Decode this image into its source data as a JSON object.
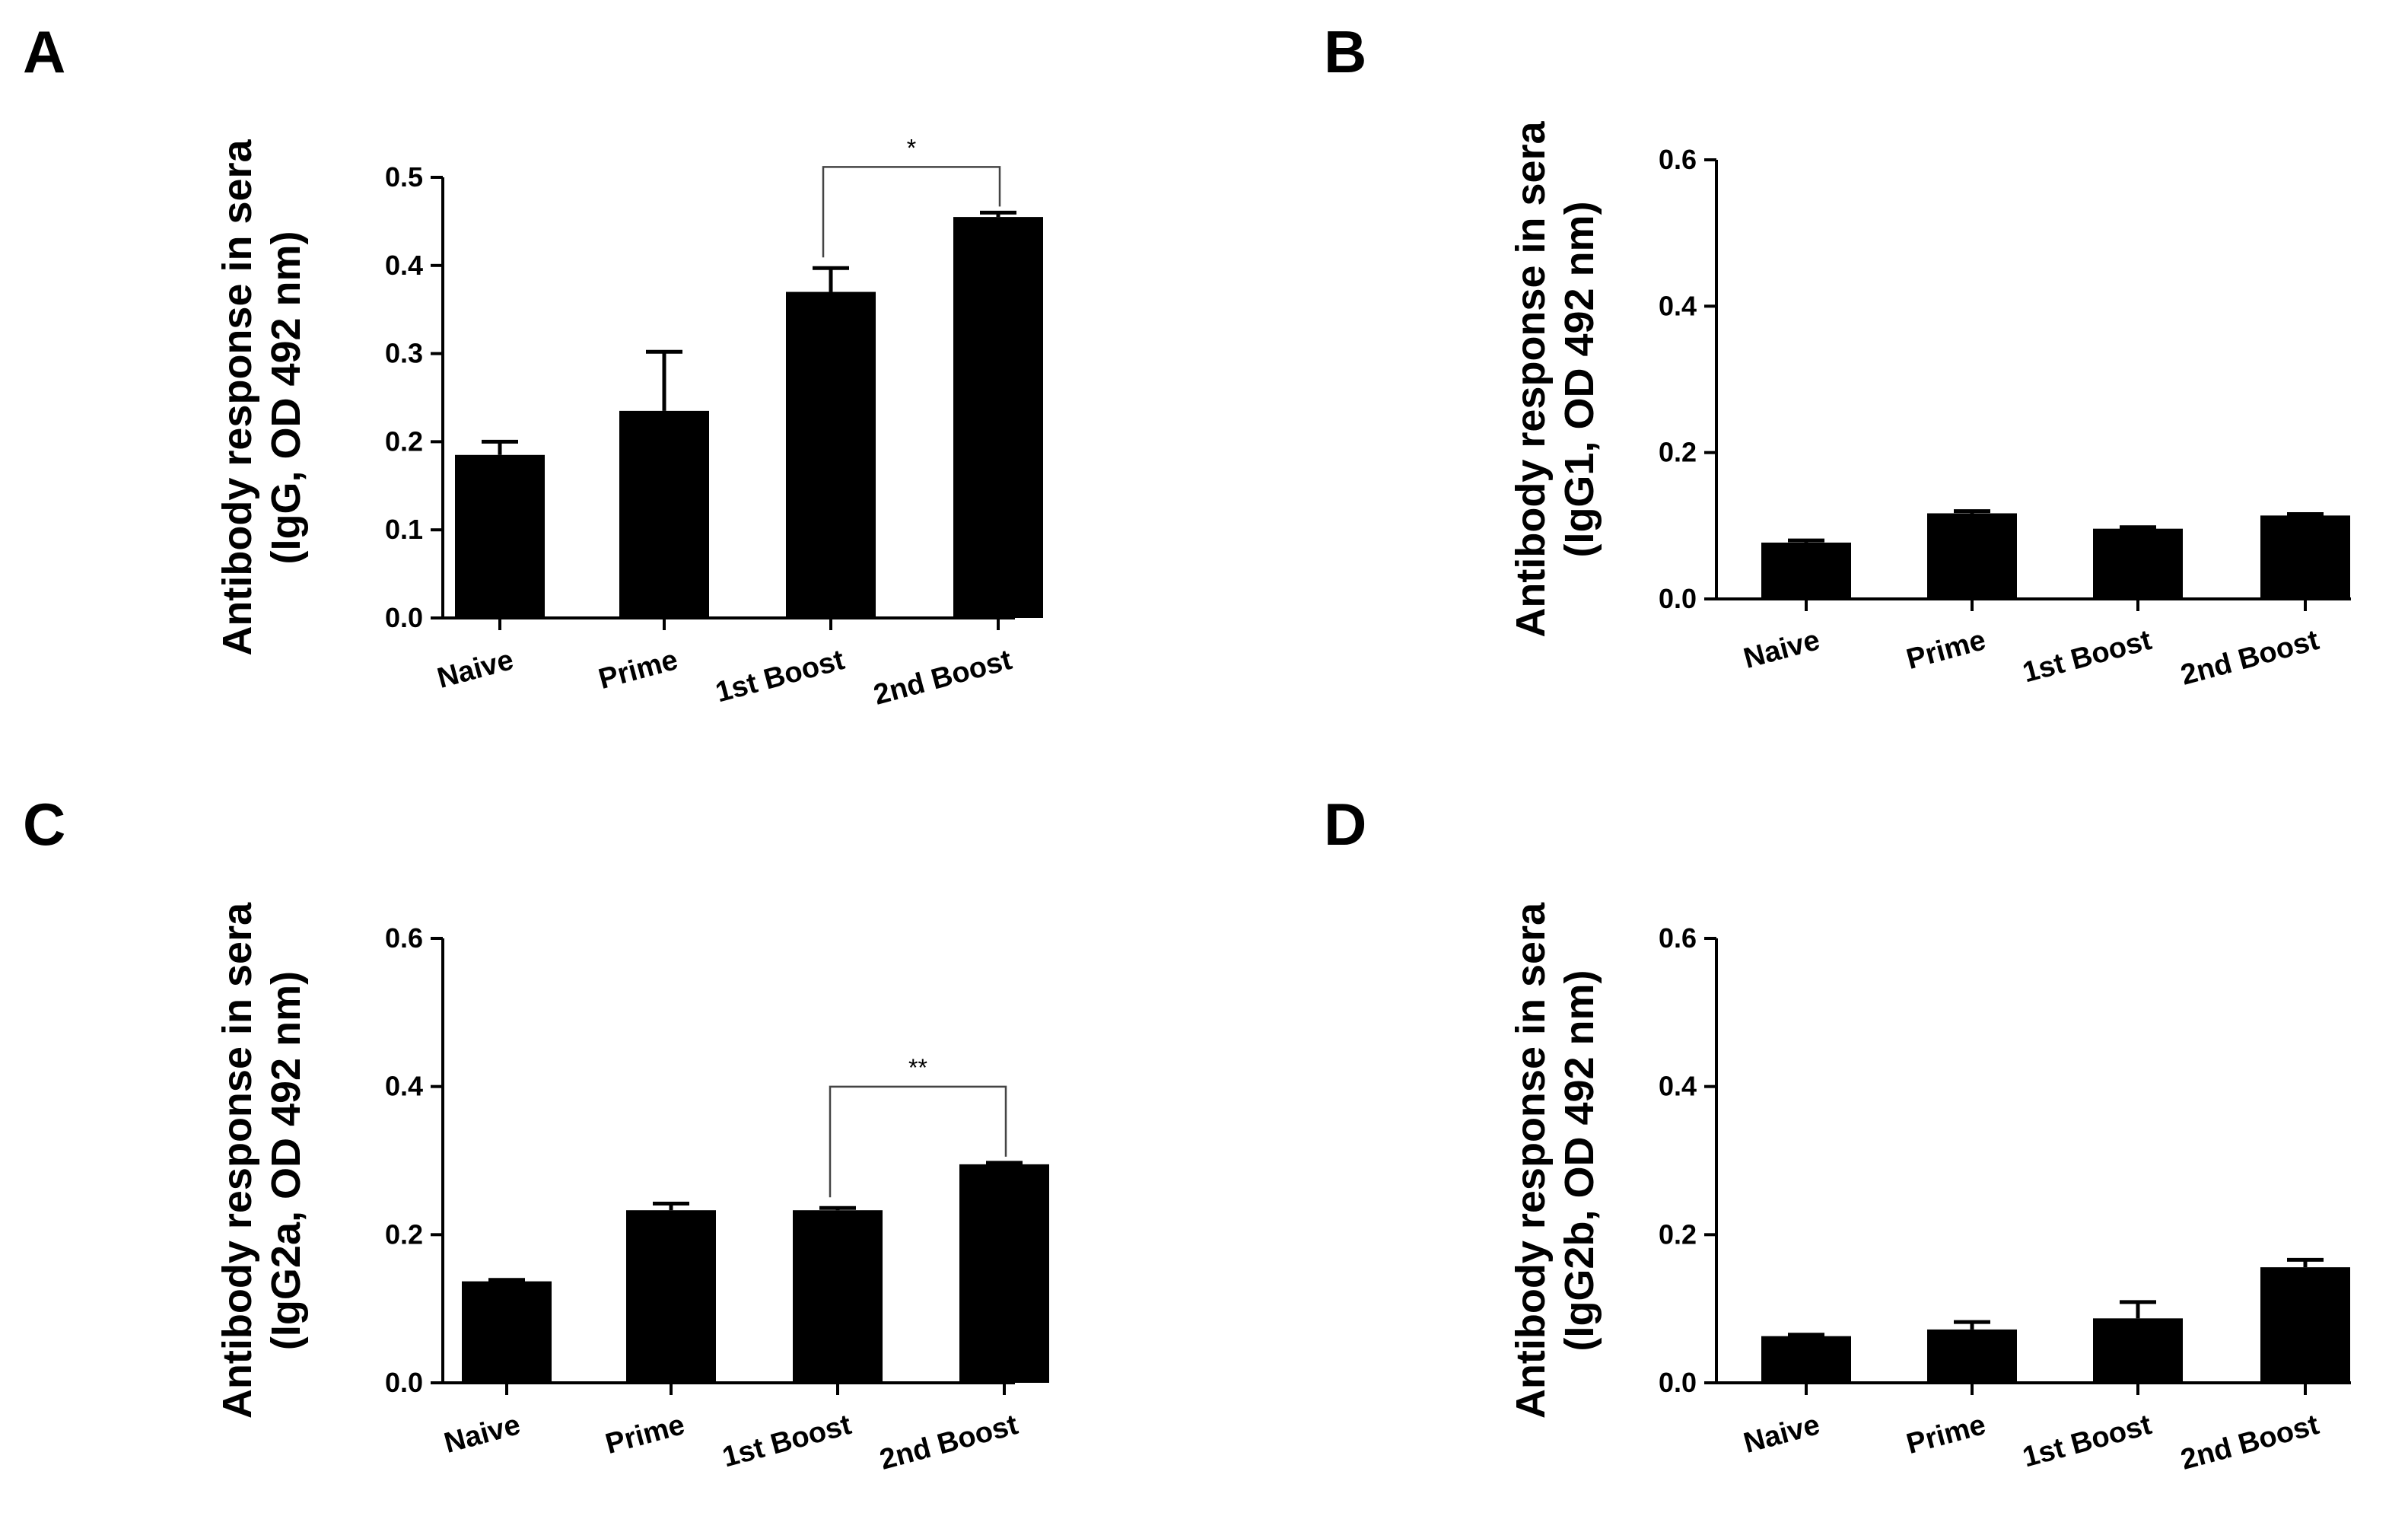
{
  "chart_data": [
    {
      "panel": "A",
      "type": "bar",
      "ylabel_line1": "Antibody response in sera",
      "ylabel_line2": "(IgG, OD 492 nm)",
      "categories": [
        "Naive",
        "Prime",
        "1st Boost",
        "2nd Boost"
      ],
      "values": [
        0.185,
        0.235,
        0.37,
        0.455
      ],
      "errors": [
        0.015,
        0.067,
        0.027,
        0.005
      ],
      "ylim": [
        0,
        0.5
      ],
      "yticks": [
        "0.0",
        "0.1",
        "0.2",
        "0.3",
        "0.4",
        "0.5"
      ],
      "significance": {
        "from": 2,
        "to": 3,
        "label": "*"
      }
    },
    {
      "panel": "B",
      "type": "bar",
      "ylabel_line1": "Antibody response in sera",
      "ylabel_line2": "(IgG1, OD 492 nm)",
      "categories": [
        "Naive",
        "Prime",
        "1st Boost",
        "2nd Boost"
      ],
      "values": [
        0.077,
        0.117,
        0.096,
        0.114
      ],
      "errors": [
        0.003,
        0.003,
        0.002,
        0.002
      ],
      "ylim": [
        0,
        0.6
      ],
      "yticks": [
        "0.0",
        "0.2",
        "0.4",
        "0.6"
      ],
      "significance": null
    },
    {
      "panel": "C",
      "type": "bar",
      "ylabel_line1": "Antibody response in sera",
      "ylabel_line2": "(IgG2a, OD 492 nm)",
      "categories": [
        "Naive",
        "Prime",
        "1st Boost",
        "2nd Boost"
      ],
      "values": [
        0.137,
        0.233,
        0.233,
        0.295
      ],
      "errors": [
        0.002,
        0.009,
        0.003,
        0.002
      ],
      "ylim": [
        0,
        0.6
      ],
      "yticks": [
        "0.0",
        "0.2",
        "0.4",
        "0.6"
      ],
      "significance": {
        "from": 2,
        "to": 3,
        "label": "**"
      }
    },
    {
      "panel": "D",
      "type": "bar",
      "ylabel_line1": "Antibody response in sera",
      "ylabel_line2": "(IgG2b, OD 492 nm)",
      "categories": [
        "Naive",
        "Prime",
        "1st Boost",
        "2nd Boost"
      ],
      "values": [
        0.063,
        0.072,
        0.087,
        0.156
      ],
      "errors": [
        0.002,
        0.01,
        0.022,
        0.01
      ],
      "ylim": [
        0,
        0.6
      ],
      "yticks": [
        "0.0",
        "0.2",
        "0.4",
        "0.6"
      ],
      "significance": null
    }
  ]
}
